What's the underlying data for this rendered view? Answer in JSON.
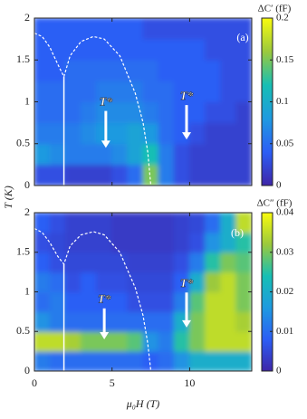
{
  "chart_data": [
    {
      "type": "heatmap",
      "panel_label": "(a)",
      "colorbar_title": "ΔC′ (fF)",
      "xlim": [
        0,
        14
      ],
      "xticks": [
        0,
        5,
        10
      ],
      "ylim": [
        0,
        2
      ],
      "yticks": [
        0,
        0.5,
        1,
        1.5,
        2
      ],
      "zlim": [
        0,
        0.2
      ],
      "zticks": [
        0,
        0.05,
        0.1,
        0.15,
        0.2
      ],
      "xbins": [
        0,
        1,
        2,
        3,
        4,
        5,
        6,
        7,
        8,
        9,
        10,
        11,
        12,
        13,
        14
      ],
      "ybins": [
        0,
        0.25,
        0.5,
        0.75,
        1,
        1.25,
        1.5,
        1.75,
        2
      ],
      "z": [
        [
          0.03,
          0.03,
          0.02,
          0.02,
          0.02,
          0.03,
          0.05,
          0.15,
          0.06,
          0.03,
          0.02,
          0.02,
          0.02,
          0.02
        ],
        [
          0.08,
          0.07,
          0.06,
          0.06,
          0.06,
          0.07,
          0.09,
          0.12,
          0.06,
          0.03,
          0.02,
          0.02,
          0.02,
          0.02
        ],
        [
          0.06,
          0.06,
          0.06,
          0.07,
          0.08,
          0.08,
          0.09,
          0.08,
          0.05,
          0.04,
          0.03,
          0.02,
          0.02,
          0.02
        ],
        [
          0.05,
          0.05,
          0.05,
          0.06,
          0.07,
          0.07,
          0.07,
          0.06,
          0.05,
          0.04,
          0.04,
          0.03,
          0.03,
          0.02
        ],
        [
          0.05,
          0.05,
          0.05,
          0.05,
          0.06,
          0.06,
          0.06,
          0.05,
          0.05,
          0.04,
          0.04,
          0.04,
          0.03,
          0.03
        ],
        [
          0.04,
          0.04,
          0.05,
          0.05,
          0.05,
          0.05,
          0.05,
          0.05,
          0.04,
          0.04,
          0.04,
          0.04,
          0.03,
          0.03
        ],
        [
          0.04,
          0.04,
          0.04,
          0.04,
          0.04,
          0.04,
          0.04,
          0.04,
          0.04,
          0.04,
          0.04,
          0.03,
          0.03,
          0.03
        ],
        [
          0.04,
          0.04,
          0.04,
          0.04,
          0.04,
          0.04,
          0.04,
          0.03,
          0.03,
          0.03,
          0.03,
          0.03,
          0.03,
          0.03
        ]
      ],
      "boundary": {
        "color": "#ffffff",
        "x": [
          0,
          0.5,
          1,
          1.5,
          1.9,
          2.3,
          3,
          3.8,
          4.5,
          5.5,
          6.5,
          7,
          7.3,
          7.5
        ],
        "y": [
          1.82,
          1.78,
          1.65,
          1.45,
          1.3,
          1.55,
          1.72,
          1.78,
          1.75,
          1.55,
          1.1,
          0.75,
          0.4,
          0
        ]
      },
      "line": {
        "color": "#ffffff",
        "x": [
          1.9,
          1.9
        ],
        "y": [
          0,
          1.3
        ]
      },
      "annotations": [
        "T*",
        "T*"
      ]
    },
    {
      "type": "heatmap",
      "panel_label": "(b)",
      "colorbar_title": "ΔC″ (fF)",
      "xlabel": "μ₀H (T)",
      "ylabel": "T (K)",
      "xlim": [
        0,
        14
      ],
      "xticks": [
        0,
        5,
        10
      ],
      "ylim": [
        0,
        2
      ],
      "yticks": [
        0,
        0.5,
        1,
        1.5,
        2
      ],
      "zlim": [
        0,
        0.04
      ],
      "zticks": [
        0,
        0.01,
        0.02,
        0.03,
        0.04
      ],
      "xbins": [
        0,
        1,
        2,
        3,
        4,
        5,
        6,
        7,
        8,
        9,
        10,
        11,
        12,
        13,
        14
      ],
      "ybins": [
        0,
        0.25,
        0.5,
        0.75,
        1,
        1.25,
        1.5,
        1.75,
        2
      ],
      "z": [
        [
          0.012,
          0.01,
          0.01,
          0.01,
          0.01,
          0.01,
          0.01,
          0.008,
          0.01,
          0.015,
          0.02,
          0.02,
          0.02,
          0.02
        ],
        [
          0.035,
          0.035,
          0.033,
          0.03,
          0.03,
          0.03,
          0.028,
          0.015,
          0.012,
          0.025,
          0.03,
          0.035,
          0.035,
          0.035
        ],
        [
          0.015,
          0.012,
          0.01,
          0.01,
          0.01,
          0.01,
          0.01,
          0.01,
          0.01,
          0.02,
          0.03,
          0.035,
          0.035,
          0.033
        ],
        [
          0.01,
          0.012,
          0.008,
          0.008,
          0.008,
          0.008,
          0.006,
          0.006,
          0.006,
          0.012,
          0.028,
          0.035,
          0.035,
          0.03
        ],
        [
          0.012,
          0.01,
          0.006,
          0.008,
          0.006,
          0.006,
          0.005,
          0.005,
          0.005,
          0.008,
          0.02,
          0.032,
          0.035,
          0.03
        ],
        [
          0.008,
          0.006,
          0.005,
          0.005,
          0.005,
          0.005,
          0.004,
          0.004,
          0.004,
          0.006,
          0.012,
          0.025,
          0.03,
          0.028
        ],
        [
          0.006,
          0.005,
          0.004,
          0.004,
          0.004,
          0.003,
          0.003,
          0.003,
          0.003,
          0.004,
          0.006,
          0.015,
          0.02,
          0.025
        ],
        [
          0.008,
          0.006,
          0.004,
          0.004,
          0.004,
          0.003,
          0.003,
          0.003,
          0.003,
          0.004,
          0.005,
          0.01,
          0.02,
          0.035
        ]
      ],
      "boundary": {
        "color": "#ffffff",
        "x": [
          0,
          0.5,
          1,
          1.5,
          1.9,
          2.3,
          3,
          3.8,
          4.5,
          5.5,
          6.5,
          7,
          7.3,
          7.5
        ],
        "y": [
          1.8,
          1.75,
          1.62,
          1.45,
          1.35,
          1.58,
          1.72,
          1.76,
          1.72,
          1.5,
          1.05,
          0.7,
          0.35,
          0
        ]
      },
      "line": {
        "color": "#ffffff",
        "x": [
          1.9,
          1.9
        ],
        "y": [
          0,
          1.35
        ]
      },
      "annotations": [
        "T*",
        "T*"
      ]
    }
  ]
}
